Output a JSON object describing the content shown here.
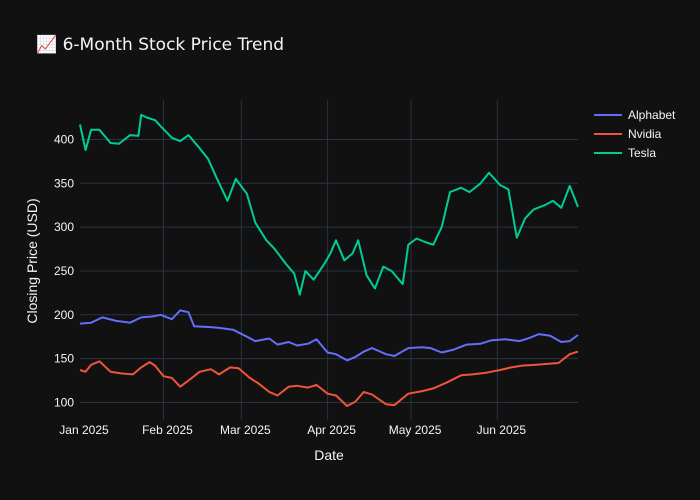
{
  "page": {
    "background": "#111111",
    "plot_background": "#111111",
    "grid_color": "#283442",
    "text_color": "#f2f5fa"
  },
  "chart_data": {
    "type": "line",
    "title": "📈 6-Month Stock Price Trend",
    "xlabel": "Date",
    "ylabel": "Closing Price (USD)",
    "xlim": [
      "2025-01-02",
      "2025-06-30"
    ],
    "ylim": [
      80,
      445
    ],
    "xticks": [
      {
        "date": "2025-01-01",
        "label": "Jan 2025"
      },
      {
        "date": "2025-02-01",
        "label": "Feb 2025"
      },
      {
        "date": "2025-03-01",
        "label": "Mar 2025"
      },
      {
        "date": "2025-04-01",
        "label": "Apr 2025"
      },
      {
        "date": "2025-05-01",
        "label": "May 2025"
      },
      {
        "date": "2025-06-01",
        "label": "Jun 2025"
      }
    ],
    "yticks": [
      100,
      150,
      200,
      250,
      300,
      350,
      400
    ],
    "grid": true,
    "legend_position": "top-right",
    "series": [
      {
        "name": "Alphabet",
        "color": "#636efa",
        "points": [
          [
            "2025-01-02",
            190
          ],
          [
            "2025-01-06",
            191
          ],
          [
            "2025-01-10",
            197
          ],
          [
            "2025-01-15",
            193
          ],
          [
            "2025-01-20",
            191
          ],
          [
            "2025-01-24",
            197
          ],
          [
            "2025-01-28",
            198
          ],
          [
            "2025-01-31",
            200
          ],
          [
            "2025-02-04",
            195
          ],
          [
            "2025-02-07",
            205
          ],
          [
            "2025-02-10",
            203
          ],
          [
            "2025-02-12",
            187
          ],
          [
            "2025-02-18",
            186
          ],
          [
            "2025-02-21",
            185
          ],
          [
            "2025-02-26",
            183
          ],
          [
            "2025-03-03",
            175
          ],
          [
            "2025-03-06",
            170
          ],
          [
            "2025-03-11",
            173
          ],
          [
            "2025-03-14",
            166
          ],
          [
            "2025-03-18",
            169
          ],
          [
            "2025-03-21",
            165
          ],
          [
            "2025-03-25",
            167
          ],
          [
            "2025-03-28",
            172
          ],
          [
            "2025-04-01",
            157
          ],
          [
            "2025-04-04",
            155
          ],
          [
            "2025-04-08",
            148
          ],
          [
            "2025-04-11",
            152
          ],
          [
            "2025-04-14",
            158
          ],
          [
            "2025-04-17",
            162
          ],
          [
            "2025-04-22",
            155
          ],
          [
            "2025-04-25",
            153
          ],
          [
            "2025-04-30",
            162
          ],
          [
            "2025-05-05",
            163
          ],
          [
            "2025-05-08",
            162
          ],
          [
            "2025-05-12",
            157
          ],
          [
            "2025-05-16",
            160
          ],
          [
            "2025-05-21",
            166
          ],
          [
            "2025-05-26",
            167
          ],
          [
            "2025-05-30",
            171
          ],
          [
            "2025-06-04",
            172
          ],
          [
            "2025-06-09",
            170
          ],
          [
            "2025-06-12",
            173
          ],
          [
            "2025-06-16",
            178
          ],
          [
            "2025-06-20",
            176
          ],
          [
            "2025-06-24",
            169
          ],
          [
            "2025-06-27",
            170
          ],
          [
            "2025-06-30",
            177
          ]
        ]
      },
      {
        "name": "Nvidia",
        "color": "#ef553b",
        "points": [
          [
            "2025-01-02",
            137
          ],
          [
            "2025-01-04",
            135
          ],
          [
            "2025-01-06",
            143
          ],
          [
            "2025-01-09",
            147
          ],
          [
            "2025-01-13",
            135
          ],
          [
            "2025-01-17",
            133
          ],
          [
            "2025-01-21",
            132
          ],
          [
            "2025-01-24",
            140
          ],
          [
            "2025-01-27",
            146
          ],
          [
            "2025-01-29",
            142
          ],
          [
            "2025-02-01",
            130
          ],
          [
            "2025-02-04",
            128
          ],
          [
            "2025-02-07",
            118
          ],
          [
            "2025-02-10",
            125
          ],
          [
            "2025-02-14",
            135
          ],
          [
            "2025-02-18",
            138
          ],
          [
            "2025-02-21",
            132
          ],
          [
            "2025-02-25",
            140
          ],
          [
            "2025-02-28",
            139
          ],
          [
            "2025-03-04",
            128
          ],
          [
            "2025-03-07",
            122
          ],
          [
            "2025-03-11",
            112
          ],
          [
            "2025-03-14",
            108
          ],
          [
            "2025-03-18",
            118
          ],
          [
            "2025-03-21",
            119
          ],
          [
            "2025-03-25",
            117
          ],
          [
            "2025-03-28",
            120
          ],
          [
            "2025-04-01",
            110
          ],
          [
            "2025-04-04",
            108
          ],
          [
            "2025-04-08",
            96
          ],
          [
            "2025-04-11",
            101
          ],
          [
            "2025-04-14",
            112
          ],
          [
            "2025-04-17",
            109
          ],
          [
            "2025-04-22",
            98
          ],
          [
            "2025-04-25",
            97
          ],
          [
            "2025-04-30",
            110
          ],
          [
            "2025-05-05",
            113
          ],
          [
            "2025-05-09",
            116
          ],
          [
            "2025-05-14",
            123
          ],
          [
            "2025-05-19",
            131
          ],
          [
            "2025-05-23",
            132
          ],
          [
            "2025-05-28",
            134
          ],
          [
            "2025-06-02",
            137
          ],
          [
            "2025-06-06",
            140
          ],
          [
            "2025-06-10",
            142
          ],
          [
            "2025-06-15",
            143
          ],
          [
            "2025-06-19",
            144
          ],
          [
            "2025-06-23",
            145
          ],
          [
            "2025-06-27",
            155
          ],
          [
            "2025-06-30",
            158
          ]
        ]
      },
      {
        "name": "Tesla",
        "color": "#00cc96",
        "points": [
          [
            "2025-01-02",
            417
          ],
          [
            "2025-01-04",
            388
          ],
          [
            "2025-01-06",
            411
          ],
          [
            "2025-01-09",
            411
          ],
          [
            "2025-01-13",
            396
          ],
          [
            "2025-01-16",
            395
          ],
          [
            "2025-01-20",
            405
          ],
          [
            "2025-01-23",
            404
          ],
          [
            "2025-01-24",
            428
          ],
          [
            "2025-01-26",
            425
          ],
          [
            "2025-01-29",
            422
          ],
          [
            "2025-01-31",
            415
          ],
          [
            "2025-02-04",
            402
          ],
          [
            "2025-02-07",
            398
          ],
          [
            "2025-02-10",
            405
          ],
          [
            "2025-02-14",
            390
          ],
          [
            "2025-02-17",
            378
          ],
          [
            "2025-02-20",
            357
          ],
          [
            "2025-02-24",
            330
          ],
          [
            "2025-02-27",
            355
          ],
          [
            "2025-03-03",
            338
          ],
          [
            "2025-03-06",
            305
          ],
          [
            "2025-03-10",
            285
          ],
          [
            "2025-03-13",
            275
          ],
          [
            "2025-03-17",
            258
          ],
          [
            "2025-03-20",
            247
          ],
          [
            "2025-03-22",
            223
          ],
          [
            "2025-03-24",
            250
          ],
          [
            "2025-03-27",
            240
          ],
          [
            "2025-03-31",
            259
          ],
          [
            "2025-04-02",
            270
          ],
          [
            "2025-04-04",
            285
          ],
          [
            "2025-04-07",
            262
          ],
          [
            "2025-04-10",
            270
          ],
          [
            "2025-04-12",
            285
          ],
          [
            "2025-04-15",
            245
          ],
          [
            "2025-04-18",
            230
          ],
          [
            "2025-04-21",
            255
          ],
          [
            "2025-04-24",
            250
          ],
          [
            "2025-04-28",
            235
          ],
          [
            "2025-04-30",
            280
          ],
          [
            "2025-05-03",
            287
          ],
          [
            "2025-05-06",
            283
          ],
          [
            "2025-05-09",
            280
          ],
          [
            "2025-05-12",
            300
          ],
          [
            "2025-05-15",
            340
          ],
          [
            "2025-05-19",
            345
          ],
          [
            "2025-05-22",
            340
          ],
          [
            "2025-05-26",
            350
          ],
          [
            "2025-05-29",
            362
          ],
          [
            "2025-06-02",
            348
          ],
          [
            "2025-06-05",
            343
          ],
          [
            "2025-06-08",
            288
          ],
          [
            "2025-06-11",
            310
          ],
          [
            "2025-06-14",
            320
          ],
          [
            "2025-06-18",
            325
          ],
          [
            "2025-06-21",
            330
          ],
          [
            "2025-06-24",
            322
          ],
          [
            "2025-06-27",
            347
          ],
          [
            "2025-06-30",
            323
          ]
        ]
      }
    ]
  }
}
